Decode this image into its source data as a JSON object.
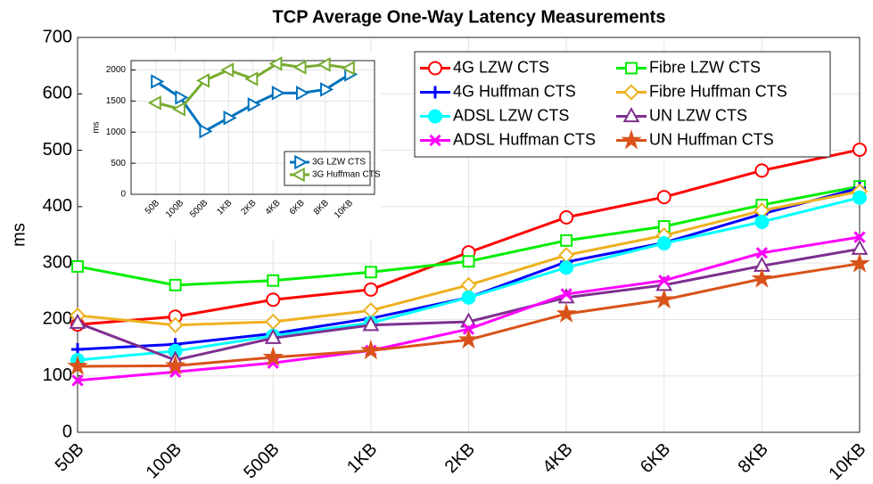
{
  "chart_data": [
    {
      "type": "line",
      "title": "TCP Average One-Way Latency Measurements",
      "y_label": "ms",
      "categories": [
        "50B",
        "100B",
        "500B",
        "1KB",
        "2KB",
        "4KB",
        "6KB",
        "8KB",
        "10KB"
      ],
      "ylim": [
        0,
        700
      ],
      "yticks": [
        0,
        100,
        200,
        300,
        400,
        500,
        600,
        700
      ],
      "grid": true,
      "legend": "upper right",
      "legend_columns": 2,
      "series": [
        {
          "name": "4G LZW CTS",
          "color": "#ff0000",
          "marker": "circle",
          "values": [
            191,
            205,
            235,
            253,
            319,
            381,
            417,
            464,
            501
          ]
        },
        {
          "name": "Fibre LZW CTS",
          "color": "#00ee00",
          "marker": "square",
          "values": [
            294,
            261,
            269,
            284,
            303,
            340,
            365,
            403,
            436
          ]
        },
        {
          "name": "4G Huffman CTS",
          "color": "#0000ff",
          "marker": "plus",
          "values": [
            147,
            156,
            175,
            202,
            239,
            302,
            336,
            387,
            433
          ]
        },
        {
          "name": "Fibre Huffman CTS",
          "color": "#edb120",
          "marker": "diamond",
          "values": [
            207,
            190,
            196,
            216,
            261,
            314,
            349,
            393,
            427
          ]
        },
        {
          "name": "ADSL LZW CTS",
          "color": "#00ffff",
          "marker": "circle-filled",
          "values": [
            128,
            144,
            171,
            194,
            239,
            292,
            335,
            373,
            416
          ]
        },
        {
          "name": "UN LZW CTS",
          "color": "#7e2f8e",
          "marker": "triangle-up",
          "values": [
            194,
            128,
            167,
            190,
            196,
            239,
            261,
            295,
            325
          ]
        },
        {
          "name": "ADSL Huffman CTS",
          "color": "#ff00ff",
          "marker": "x",
          "values": [
            92,
            107,
            123,
            145,
            183,
            245,
            269,
            318,
            346
          ]
        },
        {
          "name": "UN Huffman CTS",
          "color": "#d95319",
          "marker": "star",
          "values": [
            117,
            118,
            133,
            145,
            164,
            210,
            235,
            272,
            299
          ]
        }
      ]
    },
    {
      "type": "line",
      "y_label": "ms",
      "categories": [
        "50B",
        "100B",
        "500B",
        "1KB",
        "2KB",
        "4KB",
        "6KB",
        "8KB",
        "10KB"
      ],
      "ylim": [
        0,
        2150
      ],
      "yticks": [
        0,
        500,
        1000,
        1500,
        2000
      ],
      "grid": true,
      "legend": "lower right",
      "legend_columns": 1,
      "series": [
        {
          "name": "3G LZW CTS",
          "color": "#0072bd",
          "marker": "triangle-right",
          "values": [
            1814,
            1557,
            1014,
            1229,
            1443,
            1629,
            1629,
            1686,
            1929
          ]
        },
        {
          "name": "3G Huffman CTS",
          "color": "#77ac30",
          "marker": "triangle-left",
          "values": [
            1471,
            1371,
            1829,
            2000,
            1857,
            2100,
            2043,
            2086,
            2029
          ]
        }
      ]
    }
  ]
}
